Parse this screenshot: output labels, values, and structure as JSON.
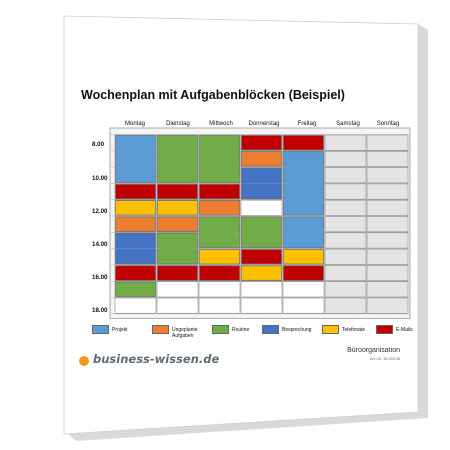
{
  "title": "Wochenplan mit Aufgabenblöcken (Beispiel)",
  "days": [
    "Montag",
    "Dienstag",
    "Mittwoch",
    "Donnerstag",
    "Freitag",
    "Samstag",
    "Sonntag"
  ],
  "times": [
    "8.00",
    "10.00",
    "12.00",
    "14.00",
    "16.00",
    "18.00"
  ],
  "colors": {
    "projekt": "#5b9bd5",
    "ungeplant": "#ed7d31",
    "routine": "#70ad47",
    "besprechung": "#4472c4",
    "telefonate": "#ffc000",
    "emails": "#c00000",
    "empty_cell": "#ffffff",
    "weekend_cell": "#e4e4e4"
  },
  "legend": [
    {
      "key": "projekt",
      "label": "Projekt"
    },
    {
      "key": "ungeplant",
      "label": "Ungeplante\nAufgaben"
    },
    {
      "key": "routine",
      "label": "Routine"
    },
    {
      "key": "besprechung",
      "label": "Besprechung"
    },
    {
      "key": "telefonate",
      "label": "Telefonate"
    },
    {
      "key": "emails",
      "label": "E-Mails"
    }
  ],
  "schedule": {
    "rows_per_day": 11,
    "blocks": [
      {
        "day": 0,
        "start": 0,
        "span": 3,
        "type": "projekt"
      },
      {
        "day": 0,
        "start": 3,
        "span": 1,
        "type": "emails"
      },
      {
        "day": 0,
        "start": 4,
        "span": 1,
        "type": "telefonate"
      },
      {
        "day": 0,
        "start": 5,
        "span": 1,
        "type": "ungeplant"
      },
      {
        "day": 0,
        "start": 6,
        "span": 2,
        "type": "besprechung"
      },
      {
        "day": 0,
        "start": 8,
        "span": 1,
        "type": "emails"
      },
      {
        "day": 0,
        "start": 9,
        "span": 1,
        "type": "routine"
      },
      {
        "day": 1,
        "start": 0,
        "span": 3,
        "type": "routine"
      },
      {
        "day": 1,
        "start": 3,
        "span": 1,
        "type": "emails"
      },
      {
        "day": 1,
        "start": 4,
        "span": 1,
        "type": "telefonate"
      },
      {
        "day": 1,
        "start": 5,
        "span": 1,
        "type": "ungeplant"
      },
      {
        "day": 1,
        "start": 6,
        "span": 2,
        "type": "routine"
      },
      {
        "day": 1,
        "start": 8,
        "span": 1,
        "type": "emails"
      },
      {
        "day": 2,
        "start": 0,
        "span": 3,
        "type": "routine"
      },
      {
        "day": 2,
        "start": 3,
        "span": 1,
        "type": "emails"
      },
      {
        "day": 2,
        "start": 4,
        "span": 1,
        "type": "ungeplant"
      },
      {
        "day": 2,
        "start": 5,
        "span": 2,
        "type": "routine"
      },
      {
        "day": 2,
        "start": 7,
        "span": 1,
        "type": "telefonate"
      },
      {
        "day": 2,
        "start": 8,
        "span": 1,
        "type": "emails"
      },
      {
        "day": 3,
        "start": 0,
        "span": 1,
        "type": "emails"
      },
      {
        "day": 3,
        "start": 1,
        "span": 1,
        "type": "ungeplant"
      },
      {
        "day": 3,
        "start": 2,
        "span": 2,
        "type": "besprechung"
      },
      {
        "day": 3,
        "start": 5,
        "span": 2,
        "type": "routine"
      },
      {
        "day": 3,
        "start": 7,
        "span": 1,
        "type": "emails"
      },
      {
        "day": 3,
        "start": 8,
        "span": 1,
        "type": "telefonate"
      },
      {
        "day": 4,
        "start": 0,
        "span": 1,
        "type": "emails"
      },
      {
        "day": 4,
        "start": 1,
        "span": 4,
        "type": "projekt"
      },
      {
        "day": 4,
        "start": 5,
        "span": 2,
        "type": "projekt"
      },
      {
        "day": 4,
        "start": 7,
        "span": 1,
        "type": "telefonate"
      },
      {
        "day": 4,
        "start": 8,
        "span": 1,
        "type": "emails"
      }
    ]
  },
  "logo": "business-wissen.de",
  "footer": {
    "title": "Büroorganisation",
    "article": "Art.-Nr. 36.003.06"
  }
}
